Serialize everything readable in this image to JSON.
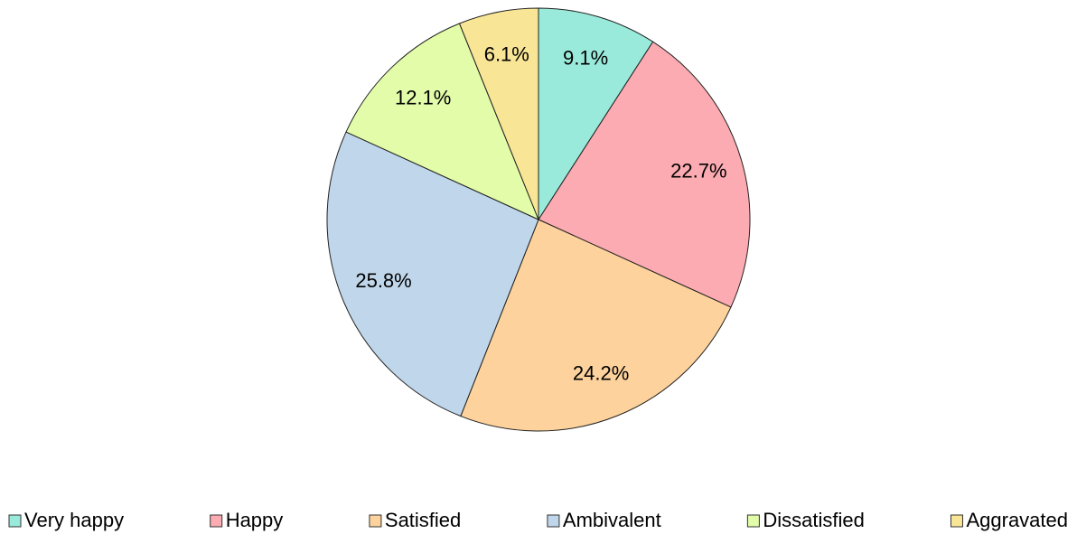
{
  "chart_data": {
    "type": "pie",
    "categories": [
      "Very happy",
      "Happy",
      "Satisfied",
      "Ambivalent",
      "Dissatisfied",
      "Aggravated"
    ],
    "values": [
      9.1,
      22.7,
      24.2,
      25.8,
      12.1,
      6.1
    ],
    "value_labels": [
      "9.1%",
      "22.7%",
      "24.2%",
      "25.8%",
      "12.1%",
      "6.1%"
    ],
    "colors": [
      "#9aeadc",
      "#fbabb1",
      "#fdd29c",
      "#c0d6ea",
      "#e2fca9",
      "#f8e596"
    ],
    "legend": "bottom"
  }
}
